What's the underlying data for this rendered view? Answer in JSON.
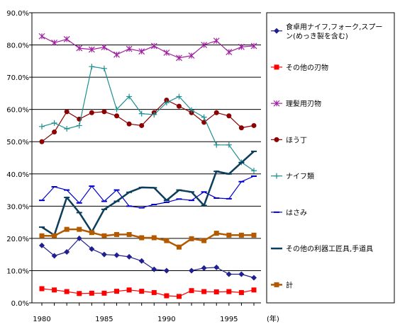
{
  "chart_data": {
    "type": "line",
    "title": "",
    "xlabel": "",
    "x_unit_label": "(年)",
    "ylabel": "",
    "ylim": [
      0,
      90
    ],
    "y_ticks": [
      "0.0%",
      "10.0%",
      "20.0%",
      "30.0%",
      "40.0%",
      "50.0%",
      "60.0%",
      "70.0%",
      "80.0%",
      "90.0%"
    ],
    "x": [
      1980,
      1981,
      1982,
      1983,
      1984,
      1985,
      1986,
      1987,
      1988,
      1989,
      1990,
      1991,
      1992,
      1993,
      1994,
      1995,
      1996,
      1997
    ],
    "x_ticks": [
      "1980",
      "1985",
      "1990",
      "1995"
    ],
    "grid": "horizontal",
    "legend_position": "right",
    "series": [
      {
        "name": "食卓用ナイフ,フォーク,スプーン(めっき製を含む)",
        "color": "#1f1f8f",
        "marker": "diamond",
        "values": [
          17.8,
          14.6,
          15.8,
          20.0,
          16.7,
          15.0,
          14.8,
          14.3,
          13.0,
          10.4,
          10.0,
          null,
          10.0,
          10.8,
          11.0,
          8.9,
          8.9,
          7.8
        ]
      },
      {
        "name": "その他の刃物",
        "color": "#ff0000",
        "marker": "square",
        "values": [
          4.4,
          4.0,
          3.5,
          2.9,
          3.0,
          3.0,
          3.6,
          4.0,
          3.6,
          3.2,
          2.2,
          2.0,
          3.8,
          3.5,
          3.4,
          3.5,
          3.2,
          4.0
        ]
      },
      {
        "name": "理髪用刃物",
        "color": "#a020a0",
        "marker": "star",
        "values": [
          82.7,
          80.7,
          81.8,
          79.0,
          78.6,
          79.3,
          77.0,
          78.8,
          78.0,
          79.7,
          77.6,
          76.0,
          76.7,
          80.0,
          81.3,
          77.8,
          79.4,
          79.7
        ]
      },
      {
        "name": "ほう丁",
        "color": "#8b0000",
        "marker": "circle",
        "values": [
          50.0,
          53.0,
          59.3,
          57.0,
          59.0,
          59.3,
          58.0,
          55.5,
          55.0,
          59.0,
          62.9,
          61.0,
          59.0,
          56.0,
          59.0,
          58.0,
          54.3,
          55.0
        ]
      },
      {
        "name": "ナイフ類",
        "color": "#1f8f8f",
        "marker": "plus",
        "values": [
          54.7,
          55.8,
          54.0,
          55.0,
          73.3,
          72.7,
          60.0,
          64.0,
          58.7,
          58.4,
          62.1,
          64.0,
          59.8,
          57.6,
          49.0,
          49.0,
          43.6,
          41.0
        ]
      },
      {
        "name": "はさみ",
        "color": "#0000cd",
        "marker": "dash",
        "values": [
          31.8,
          36.0,
          35.0,
          31.0,
          36.2,
          31.5,
          35.0,
          30.0,
          29.5,
          30.5,
          31.2,
          32.2,
          31.8,
          34.4,
          32.5,
          32.3,
          37.6,
          39.3
        ]
      },
      {
        "name": "その他の利器工匠具,手道具",
        "color": "#0b3d5c",
        "marker": "dash",
        "values": [
          23.5,
          21.0,
          32.7,
          28.0,
          22.0,
          29.0,
          31.5,
          34.3,
          35.8,
          35.7,
          31.8,
          35.0,
          34.4,
          30.2,
          40.8,
          40.0,
          43.5,
          47.0
        ]
      },
      {
        "name": "計",
        "color": "#b35900",
        "marker": "square",
        "values": [
          20.8,
          20.8,
          22.8,
          22.8,
          21.8,
          20.8,
          21.2,
          21.2,
          20.2,
          20.2,
          19.3,
          17.3,
          19.9,
          19.3,
          21.6,
          21.0,
          21.0,
          21.0
        ]
      }
    ]
  }
}
